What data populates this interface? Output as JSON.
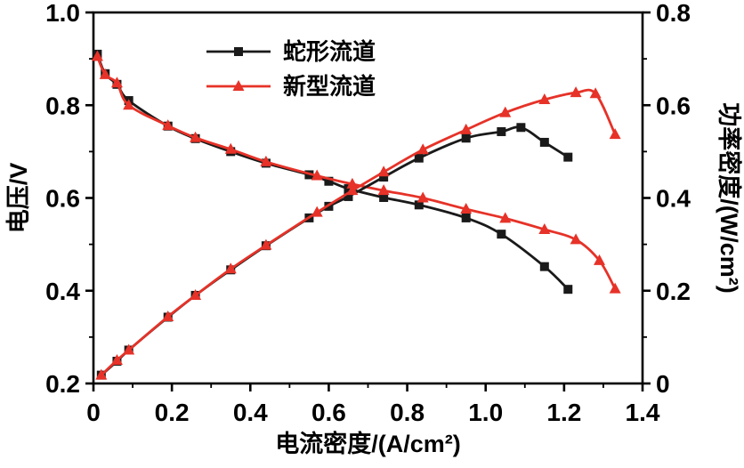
{
  "figure": {
    "background": "#ffffff",
    "frame_color": "#000000",
    "text_color": "#000000"
  },
  "chart_data": {
    "type": "line",
    "title": "",
    "grid": false,
    "legend_position": "top-center-left",
    "x_axis": {
      "label": "电流密度/(A/cm²)",
      "min": 0,
      "max": 1.4,
      "ticks": [
        0,
        0.2,
        0.4,
        0.6,
        0.8,
        1.0,
        1.2,
        1.4
      ],
      "tick_labels": [
        "0",
        "0.2",
        "0.4",
        "0.6",
        "0.8",
        "1.0",
        "1.2",
        "1.4"
      ],
      "minor_ticks": [
        0.1,
        0.3,
        0.5,
        0.7,
        0.9,
        1.1,
        1.3
      ]
    },
    "y_left_axis": {
      "label": "电压/V",
      "min": 0.2,
      "max": 1.0,
      "ticks": [
        0.2,
        0.4,
        0.6,
        0.8,
        1.0
      ],
      "tick_labels": [
        "0.2",
        "0.4",
        "0.6",
        "0.8",
        "1.0"
      ],
      "minor_ticks": [
        0.3,
        0.5,
        0.7,
        0.9
      ]
    },
    "y_right_axis": {
      "label": "功率密度/(W/cm²)",
      "min": 0,
      "max": 0.8,
      "ticks": [
        0,
        0.2,
        0.4,
        0.6,
        0.8
      ],
      "tick_labels": [
        "0",
        "0.2",
        "0.4",
        "0.6",
        "0.8"
      ],
      "minor_ticks": [
        0.1,
        0.3,
        0.5,
        0.7
      ]
    },
    "legend": [
      {
        "label": "蛇形流道",
        "color": "#1a1a1a",
        "marker": "square"
      },
      {
        "label": "新型流道",
        "color": "#e63228",
        "marker": "triangle"
      }
    ],
    "series": [
      {
        "name": "serpentine-voltage",
        "legend": "蛇形流道",
        "axis": "left",
        "color": "#1a1a1a",
        "marker": "square",
        "points": [
          [
            0.01,
            0.91
          ],
          [
            0.03,
            0.868
          ],
          [
            0.06,
            0.845
          ],
          [
            0.09,
            0.81
          ],
          [
            0.19,
            0.755
          ],
          [
            0.26,
            0.728
          ],
          [
            0.35,
            0.7
          ],
          [
            0.44,
            0.675
          ],
          [
            0.55,
            0.65
          ],
          [
            0.6,
            0.636
          ],
          [
            0.65,
            0.62
          ],
          [
            0.74,
            0.601
          ],
          [
            0.83,
            0.585
          ],
          [
            0.95,
            0.557
          ],
          [
            1.04,
            0.522
          ],
          [
            1.15,
            0.452
          ],
          [
            1.21,
            0.403
          ]
        ]
      },
      {
        "name": "new-voltage",
        "legend": "新型流道",
        "axis": "left",
        "color": "#e63228",
        "marker": "triangle",
        "points": [
          [
            0.01,
            0.905
          ],
          [
            0.03,
            0.866
          ],
          [
            0.06,
            0.848
          ],
          [
            0.09,
            0.8
          ],
          [
            0.19,
            0.756
          ],
          [
            0.26,
            0.73
          ],
          [
            0.35,
            0.705
          ],
          [
            0.44,
            0.678
          ],
          [
            0.57,
            0.648
          ],
          [
            0.66,
            0.63
          ],
          [
            0.74,
            0.616
          ],
          [
            0.84,
            0.6
          ],
          [
            0.95,
            0.576
          ],
          [
            1.05,
            0.556
          ],
          [
            1.15,
            0.532
          ],
          [
            1.23,
            0.51
          ],
          [
            1.29,
            0.465
          ],
          [
            1.33,
            0.404
          ]
        ]
      },
      {
        "name": "serpentine-power",
        "legend": "蛇形流道",
        "axis": "right",
        "color": "#1a1a1a",
        "marker": "square",
        "points": [
          [
            0.02,
            0.018
          ],
          [
            0.06,
            0.048
          ],
          [
            0.09,
            0.072
          ],
          [
            0.19,
            0.143
          ],
          [
            0.26,
            0.19
          ],
          [
            0.35,
            0.245
          ],
          [
            0.44,
            0.297
          ],
          [
            0.55,
            0.357
          ],
          [
            0.6,
            0.382
          ],
          [
            0.65,
            0.403
          ],
          [
            0.74,
            0.445
          ],
          [
            0.83,
            0.486
          ],
          [
            0.95,
            0.529
          ],
          [
            1.04,
            0.543
          ],
          [
            1.09,
            0.552
          ],
          [
            1.15,
            0.52
          ],
          [
            1.21,
            0.488
          ]
        ]
      },
      {
        "name": "new-power",
        "legend": "新型流道",
        "axis": "right",
        "color": "#e63228",
        "marker": "triangle",
        "points": [
          [
            0.02,
            0.018
          ],
          [
            0.06,
            0.05
          ],
          [
            0.09,
            0.072
          ],
          [
            0.19,
            0.144
          ],
          [
            0.26,
            0.19
          ],
          [
            0.35,
            0.247
          ],
          [
            0.44,
            0.298
          ],
          [
            0.57,
            0.369
          ],
          [
            0.66,
            0.416
          ],
          [
            0.74,
            0.456
          ],
          [
            0.84,
            0.504
          ],
          [
            0.95,
            0.547
          ],
          [
            1.05,
            0.584
          ],
          [
            1.15,
            0.612
          ],
          [
            1.23,
            0.627
          ],
          [
            1.28,
            0.625
          ],
          [
            1.33,
            0.537
          ]
        ]
      }
    ]
  }
}
